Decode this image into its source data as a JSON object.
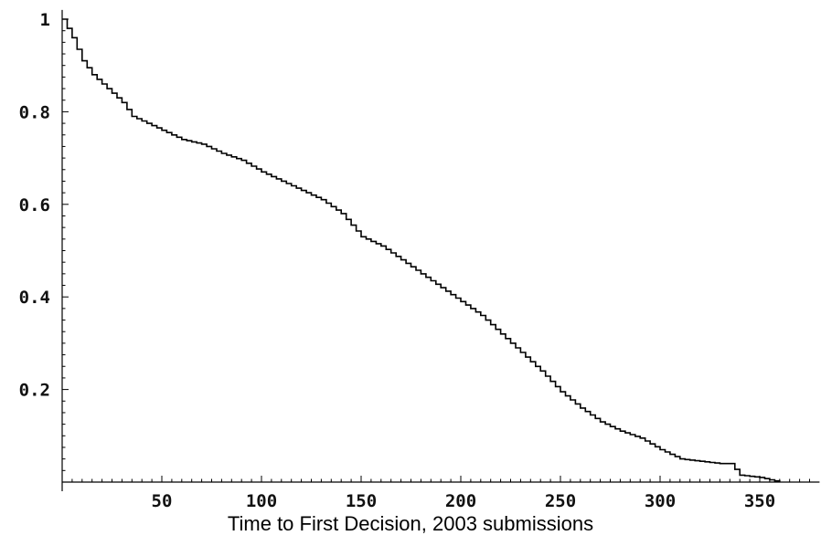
{
  "chart_data": {
    "type": "line",
    "title": "",
    "xlabel": "Time to First Decision, 2003 submissions",
    "ylabel": "",
    "xlim": [
      0,
      380
    ],
    "ylim": [
      0,
      1
    ],
    "grid": false,
    "x_ticks": [
      50,
      100,
      150,
      200,
      250,
      300,
      350
    ],
    "x_tick_labels": [
      "50",
      "100",
      "150",
      "200",
      "250",
      "300",
      "350"
    ],
    "y_ticks": [
      0.2,
      0.4,
      0.6,
      0.8,
      1.0
    ],
    "y_tick_labels": [
      "0.2",
      "0.4",
      "0.6",
      "0.8",
      "1"
    ],
    "series": [
      {
        "x": [
          0,
          5,
          10,
          15,
          20,
          25,
          30,
          35,
          40,
          50,
          60,
          70,
          80,
          90,
          100,
          110,
          120,
          130,
          140,
          150,
          160,
          170,
          180,
          190,
          200,
          210,
          220,
          230,
          240,
          250,
          260,
          270,
          280,
          290,
          300,
          310,
          320,
          330,
          335,
          340,
          350,
          360
        ],
        "y": [
          1.0,
          0.96,
          0.91,
          0.88,
          0.86,
          0.84,
          0.82,
          0.79,
          0.78,
          0.76,
          0.74,
          0.73,
          0.71,
          0.695,
          0.67,
          0.65,
          0.63,
          0.61,
          0.58,
          0.53,
          0.51,
          0.48,
          0.45,
          0.42,
          0.39,
          0.36,
          0.32,
          0.28,
          0.24,
          0.195,
          0.16,
          0.13,
          0.11,
          0.095,
          0.07,
          0.05,
          0.045,
          0.04,
          0.04,
          0.015,
          0.01,
          0.0
        ],
        "color": "#000000"
      }
    ]
  }
}
